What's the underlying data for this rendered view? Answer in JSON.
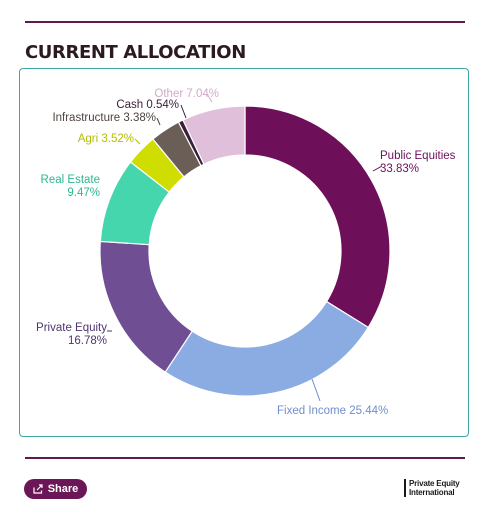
{
  "header": {
    "title": "CURRENT ALLOCATION"
  },
  "chart_data": {
    "type": "pie",
    "title": "CURRENT ALLOCATION",
    "donut": true,
    "slices": [
      {
        "name": "Public Equities",
        "value": 33.83,
        "label_line1": "Public Equities",
        "label_line2": "33.83%",
        "color": "#6e0f59",
        "text_color": "#6e0f59"
      },
      {
        "name": "Fixed Income",
        "value": 25.44,
        "label_line1": "Fixed Income 25.44%",
        "label_line2": "",
        "color": "#8aace3",
        "text_color": "#6f8fcc"
      },
      {
        "name": "Private Equity",
        "value": 16.78,
        "label_line1": "Private Equity",
        "label_line2": "16.78%",
        "color": "#6f4e93",
        "text_color": "#4e3670"
      },
      {
        "name": "Real Estate",
        "value": 9.47,
        "label_line1": "Real Estate",
        "label_line2": "9.47%",
        "color": "#46d6ae",
        "text_color": "#2ab892"
      },
      {
        "name": "Agri",
        "value": 3.52,
        "label_line1": "Agri 3.52%",
        "label_line2": "",
        "color": "#cfdd00",
        "text_color": "#b3bf00"
      },
      {
        "name": "Infrastructure",
        "value": 3.38,
        "label_line1": "Infrastructure 3.38%",
        "label_line2": "",
        "color": "#6b5e57",
        "text_color": "#4f4540"
      },
      {
        "name": "Cash",
        "value": 0.54,
        "label_line1": "Cash 0.54%",
        "label_line2": "",
        "color": "#3a1f3a",
        "text_color": "#3a1f3a"
      },
      {
        "name": "Other",
        "value": 7.04,
        "label_line1": "Other 7.04%",
        "label_line2": "",
        "color": "#dfbfd9",
        "text_color": "#d3a9cc"
      }
    ]
  },
  "footer": {
    "share_label": "Share",
    "brand_line1": "Private Equity",
    "brand_line2": "International"
  }
}
